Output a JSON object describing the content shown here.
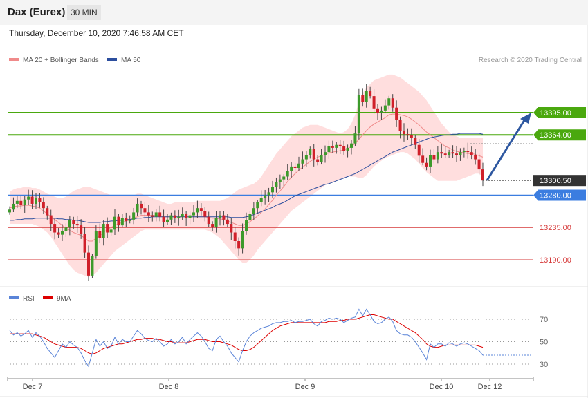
{
  "header": {
    "instrument": "Dax (Eurex)",
    "timeframe": "30 MIN",
    "datetime": "Thursday, December 10, 2020 7:46:58 AM CET"
  },
  "copyright": "Research © 2020 Trading Central",
  "colors": {
    "up": "#3d9a2b",
    "down": "#d0202a",
    "bollinger_fill": "#ffdede",
    "ma20": "#f08a8a",
    "ma50": "#2c4e9e",
    "resistance": "#4aa80e",
    "support": "#3b7de0",
    "target": "#d63a3a",
    "rsi": "#5a84d8",
    "rsi_ma": "#dd0000",
    "arrow": "#2d57a0",
    "last_price": "#333333"
  },
  "chart_data": [
    {
      "type": "candlestick",
      "title": "",
      "legend": [
        {
          "name": "MA 20 + Bollinger Bands",
          "color": "#f08a8a"
        },
        {
          "name": "MA 50",
          "color": "#2c4e9e"
        }
      ],
      "legend_position": "top-left",
      "ylim": [
        13120,
        13460
      ],
      "xlabels": [
        "Dec 7",
        "Dec 8",
        "Dec 9",
        "Dec 10",
        "Dec 12"
      ],
      "levels": [
        {
          "label": "13395.00",
          "value": 13395,
          "kind": "resistance"
        },
        {
          "label": "13364.00",
          "value": 13364,
          "kind": "resistance"
        },
        {
          "label": "13300.50",
          "value": 13300.5,
          "kind": "last"
        },
        {
          "label": "13280.00",
          "value": 13280,
          "kind": "support"
        },
        {
          "label": "13235.00",
          "value": 13235,
          "kind": "target"
        },
        {
          "label": "13190.00",
          "value": 13190,
          "kind": "target"
        }
      ],
      "close": [
        13260,
        13268,
        13272,
        13266,
        13274,
        13278,
        13268,
        13276,
        13270,
        13262,
        13252,
        13240,
        13228,
        13225,
        13230,
        13235,
        13245,
        13240,
        13238,
        13226,
        13200,
        13168,
        13195,
        13230,
        13220,
        13240,
        13228,
        13232,
        13250,
        13238,
        13248,
        13244,
        13246,
        13256,
        13268,
        13262,
        13256,
        13252,
        13250,
        13256,
        13250,
        13242,
        13246,
        13252,
        13248,
        13250,
        13254,
        13248,
        13252,
        13256,
        13262,
        13258,
        13250,
        13240,
        13236,
        13248,
        13252,
        13246,
        13240,
        13228,
        13216,
        13206,
        13230,
        13245,
        13254,
        13262,
        13270,
        13276,
        13280,
        13284,
        13292,
        13298,
        13302,
        13306,
        13314,
        13320,
        13318,
        13324,
        13330,
        13336,
        13344,
        13330,
        13326,
        13336,
        13340,
        13348,
        13346,
        13350,
        13348,
        13342,
        13346,
        13352,
        13366,
        13420,
        13410,
        13425,
        13418,
        13400,
        13395,
        13398,
        13405,
        13415,
        13402,
        13385,
        13370,
        13365,
        13364,
        13360,
        13350,
        13335,
        13325,
        13320,
        13336,
        13330,
        13340,
        13338,
        13336,
        13340,
        13338,
        13336,
        13340,
        13342,
        13340,
        13336,
        13330,
        13316,
        13300.5
      ],
      "ma20": [
        13262,
        13264,
        13265,
        13265,
        13266,
        13266,
        13265,
        13264,
        13262,
        13258,
        13254,
        13250,
        13246,
        13242,
        13238,
        13234,
        13231,
        13228,
        13226,
        13224,
        13220,
        13216,
        13216,
        13220,
        13224,
        13228,
        13232,
        13235,
        13238,
        13240,
        13242,
        13244,
        13246,
        13248,
        13250,
        13252,
        13252,
        13252,
        13252,
        13252,
        13252,
        13250,
        13250,
        13250,
        13250,
        13250,
        13250,
        13250,
        13250,
        13250,
        13250,
        13250,
        13250,
        13249,
        13248,
        13248,
        13247,
        13246,
        13244,
        13242,
        13240,
        13238,
        13238,
        13240,
        13243,
        13247,
        13251,
        13256,
        13261,
        13267,
        13273,
        13280,
        13286,
        13292,
        13299,
        13305,
        13310,
        13315,
        13319,
        13323,
        13327,
        13330,
        13333,
        13335,
        13337,
        13339,
        13340,
        13341,
        13342,
        13343,
        13345,
        13348,
        13352,
        13358,
        13364,
        13370,
        13375,
        13379,
        13382,
        13385,
        13388,
        13392,
        13393,
        13393,
        13392,
        13391,
        13389,
        13386,
        13382,
        13378,
        13373,
        13368,
        13364,
        13360,
        13356,
        13352,
        13348,
        13346,
        13343,
        13341,
        13340,
        13339,
        13338,
        13338,
        13337,
        13335,
        13333
      ],
      "boll_upper": [
        13285,
        13288,
        13290,
        13290,
        13292,
        13292,
        13290,
        13290,
        13288,
        13285,
        13282,
        13280,
        13278,
        13276,
        13276,
        13278,
        13282,
        13286,
        13288,
        13290,
        13292,
        13292,
        13290,
        13288,
        13286,
        13284,
        13282,
        13280,
        13280,
        13280,
        13280,
        13280,
        13280,
        13280,
        13282,
        13282,
        13280,
        13278,
        13276,
        13274,
        13272,
        13270,
        13268,
        13268,
        13270,
        13270,
        13270,
        13270,
        13270,
        13270,
        13272,
        13272,
        13272,
        13272,
        13272,
        13272,
        13272,
        13274,
        13276,
        13280,
        13284,
        13288,
        13290,
        13292,
        13294,
        13296,
        13300,
        13306,
        13314,
        13322,
        13330,
        13338,
        13344,
        13350,
        13356,
        13362,
        13366,
        13370,
        13374,
        13376,
        13378,
        13378,
        13378,
        13376,
        13374,
        13372,
        13370,
        13368,
        13366,
        13368,
        13372,
        13380,
        13392,
        13410,
        13422,
        13430,
        13435,
        13440,
        13442,
        13444,
        13446,
        13448,
        13448,
        13446,
        13444,
        13440,
        13436,
        13432,
        13428,
        13424,
        13418,
        13412,
        13404,
        13396,
        13388,
        13380,
        13374,
        13368,
        13364,
        13362,
        13360,
        13360,
        13360,
        13360,
        13360,
        13360,
        13360
      ],
      "boll_lower": [
        13240,
        13240,
        13240,
        13240,
        13240,
        13240,
        13240,
        13238,
        13236,
        13232,
        13228,
        13222,
        13214,
        13206,
        13198,
        13190,
        13182,
        13176,
        13172,
        13170,
        13168,
        13166,
        13168,
        13172,
        13178,
        13184,
        13190,
        13196,
        13202,
        13206,
        13210,
        13214,
        13218,
        13222,
        13226,
        13230,
        13232,
        13232,
        13232,
        13232,
        13232,
        13232,
        13232,
        13232,
        13232,
        13232,
        13232,
        13232,
        13232,
        13232,
        13232,
        13232,
        13232,
        13230,
        13228,
        13224,
        13220,
        13214,
        13208,
        13202,
        13196,
        13190,
        13186,
        13186,
        13190,
        13196,
        13204,
        13210,
        13216,
        13222,
        13228,
        13234,
        13240,
        13246,
        13252,
        13258,
        13262,
        13266,
        13270,
        13274,
        13278,
        13282,
        13286,
        13290,
        13294,
        13296,
        13298,
        13300,
        13302,
        13304,
        13306,
        13306,
        13306,
        13304,
        13304,
        13308,
        13314,
        13320,
        13324,
        13328,
        13332,
        13334,
        13336,
        13338,
        13340,
        13340,
        13338,
        13334,
        13330,
        13324,
        13318,
        13312,
        13308,
        13304,
        13300,
        13300,
        13300,
        13300,
        13300,
        13300,
        13302,
        13304,
        13306,
        13308,
        13310,
        13310,
        13306
      ],
      "ma50": [
        13245,
        13245,
        13246,
        13246,
        13247,
        13247,
        13247,
        13248,
        13248,
        13248,
        13248,
        13248,
        13248,
        13247,
        13247,
        13246,
        13246,
        13245,
        13245,
        13244,
        13243,
        13242,
        13242,
        13242,
        13242,
        13243,
        13243,
        13244,
        13244,
        13245,
        13245,
        13246,
        13246,
        13247,
        13248,
        13248,
        13249,
        13249,
        13250,
        13250,
        13250,
        13250,
        13250,
        13250,
        13250,
        13250,
        13250,
        13250,
        13250,
        13250,
        13250,
        13250,
        13250,
        13250,
        13250,
        13250,
        13250,
        13250,
        13250,
        13249,
        13249,
        13249,
        13249,
        13250,
        13251,
        13253,
        13255,
        13257,
        13259,
        13261,
        13263,
        13266,
        13268,
        13270,
        13273,
        13276,
        13279,
        13281,
        13283,
        13285,
        13287,
        13289,
        13291,
        13293,
        13295,
        13296,
        13298,
        13300,
        13302,
        13304,
        13306,
        13308,
        13310,
        13313,
        13316,
        13319,
        13322,
        13325,
        13328,
        13331,
        13334,
        13337,
        13340,
        13342,
        13344,
        13346,
        13348,
        13350,
        13352,
        13354,
        13356,
        13358,
        13360,
        13361,
        13362,
        13363,
        13364,
        13364,
        13365,
        13365,
        13366,
        13366,
        13366,
        13366,
        13366,
        13366,
        13365
      ]
    },
    {
      "type": "line",
      "title": "",
      "legend": [
        {
          "name": "RSI",
          "color": "#5a84d8"
        },
        {
          "name": "9MA",
          "color": "#dd0000"
        }
      ],
      "legend_position": "top-left",
      "ylim": [
        20,
        80
      ],
      "y_ticks": [
        {
          "label": "70",
          "value": 70
        },
        {
          "label": "50",
          "value": 50
        },
        {
          "label": "30",
          "value": 30
        }
      ],
      "rsi": [
        60,
        56,
        58,
        55,
        57,
        60,
        54,
        58,
        55,
        50,
        44,
        40,
        36,
        42,
        48,
        45,
        50,
        47,
        45,
        40,
        33,
        28,
        40,
        52,
        46,
        50,
        44,
        46,
        54,
        48,
        52,
        50,
        50,
        55,
        60,
        57,
        53,
        51,
        50,
        53,
        50,
        46,
        48,
        52,
        48,
        50,
        54,
        48,
        52,
        55,
        58,
        55,
        50,
        44,
        42,
        52,
        55,
        50,
        46,
        40,
        36,
        32,
        42,
        50,
        55,
        58,
        60,
        62,
        63,
        64,
        66,
        67,
        67,
        68,
        68,
        69,
        67,
        68,
        68,
        69,
        70,
        66,
        64,
        68,
        69,
        71,
        70,
        71,
        70,
        67,
        69,
        71,
        72,
        79,
        73,
        79,
        74,
        68,
        66,
        67,
        70,
        72,
        68,
        60,
        57,
        56,
        56,
        54,
        50,
        45,
        40,
        34,
        48,
        45,
        48,
        48,
        46,
        49,
        48,
        46,
        48,
        49,
        48,
        46,
        44,
        42,
        38
      ],
      "rsi_ma": [
        57,
        57,
        57,
        57,
        57,
        57,
        57,
        56,
        55,
        54,
        52,
        50,
        48,
        47,
        46,
        45,
        45,
        45,
        45,
        44,
        42,
        40,
        39,
        40,
        42,
        44,
        45,
        46,
        47,
        48,
        48,
        49,
        50,
        51,
        52,
        52,
        53,
        53,
        53,
        52,
        52,
        51,
        50,
        50,
        49,
        49,
        49,
        49,
        50,
        51,
        52,
        52,
        52,
        51,
        50,
        50,
        50,
        49,
        48,
        47,
        45,
        43,
        42,
        42,
        43,
        45,
        48,
        51,
        54,
        57,
        60,
        62,
        64,
        65,
        66,
        67,
        67,
        67,
        67,
        67,
        67,
        67,
        67,
        67,
        67,
        68,
        68,
        68,
        69,
        69,
        70,
        70,
        70,
        71,
        72,
        73,
        74,
        74,
        73,
        72,
        71,
        70,
        70,
        68,
        66,
        64,
        62,
        60,
        58,
        55,
        52,
        48,
        46,
        45,
        45,
        46,
        47,
        47,
        47,
        47,
        47,
        47,
        47,
        47,
        47,
        46,
        45
      ]
    }
  ]
}
